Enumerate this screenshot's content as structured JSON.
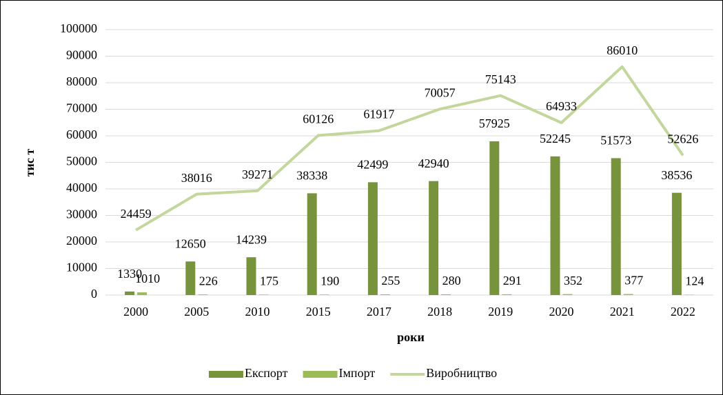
{
  "chart_data": {
    "type": "bar",
    "categories": [
      "2000",
      "2005",
      "2010",
      "2015",
      "2017",
      "2018",
      "2019",
      "2020",
      "2021",
      "2022"
    ],
    "series": [
      {
        "name": "Експорт",
        "type": "bar",
        "color": "#77933c",
        "values": [
          1330,
          12650,
          14239,
          38338,
          42499,
          42940,
          57925,
          52245,
          51573,
          38536
        ]
      },
      {
        "name": "Імпорт",
        "type": "bar",
        "color": "#9bbb59",
        "values": [
          1010,
          226,
          175,
          190,
          255,
          280,
          291,
          352,
          377,
          124
        ]
      },
      {
        "name": "Виробництво",
        "type": "line",
        "color": "#c3d69b",
        "values": [
          24459,
          38016,
          39271,
          60126,
          61917,
          70057,
          75143,
          64933,
          86010,
          52626
        ]
      }
    ],
    "y_label": "тис т",
    "x_label": "роки",
    "ylim": [
      0,
      100000
    ],
    "yticks": [
      0,
      10000,
      20000,
      30000,
      40000,
      50000,
      60000,
      70000,
      80000,
      90000,
      100000
    ],
    "grid": true,
    "legend": "bottom"
  }
}
